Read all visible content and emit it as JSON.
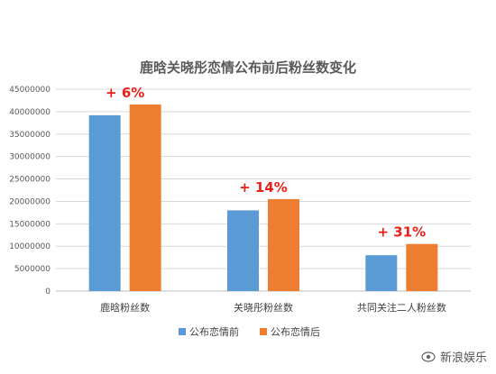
{
  "chart_data": {
    "type": "bar",
    "title": "鹿晗关晓彤恋情公布前后粉丝数变化",
    "categories": [
      "鹿晗粉丝数",
      "关晓彤粉丝数",
      "共同关注二人粉丝数"
    ],
    "series": [
      {
        "name": "公布恋情前",
        "color": "#5b9bd5",
        "values": [
          39200000,
          18000000,
          8000000
        ]
      },
      {
        "name": "公布恋情后",
        "color": "#ed7d31",
        "values": [
          41600000,
          20500000,
          10500000
        ]
      }
    ],
    "annotations": [
      "+ 6%",
      "+ 14%",
      "+ 31%"
    ],
    "annotation_color": "#e8201a",
    "ylim": [
      0,
      45000000
    ],
    "yticks": [
      0,
      5000000,
      10000000,
      15000000,
      20000000,
      25000000,
      30000000,
      35000000,
      40000000,
      45000000
    ],
    "grid": true,
    "legend_position": "bottom"
  },
  "watermark": {
    "text": "新浪娱乐",
    "icon": "weibo-eye-icon"
  }
}
